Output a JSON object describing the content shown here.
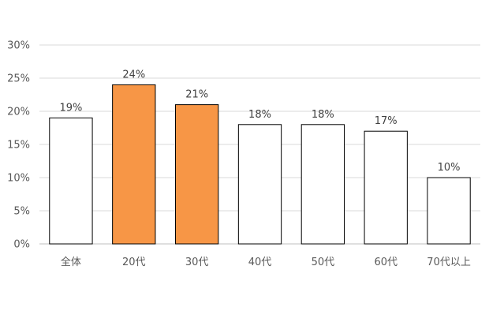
{
  "chart_data": {
    "type": "bar",
    "categories": [
      "全体",
      "20代",
      "30代",
      "40代",
      "50代",
      "60代",
      "70代以上"
    ],
    "values": [
      19,
      24,
      21,
      18,
      18,
      17,
      10
    ],
    "data_labels": [
      "19%",
      "24%",
      "21%",
      "18%",
      "18%",
      "17%",
      "10%"
    ],
    "highlighted": [
      false,
      true,
      true,
      false,
      false,
      false,
      false
    ],
    "ylim": [
      0,
      30
    ],
    "yticks": [
      0,
      5,
      10,
      15,
      20,
      25,
      30
    ],
    "ytick_labels": [
      "0%",
      "5%",
      "10%",
      "15%",
      "20%",
      "25%",
      "30%"
    ],
    "grid": true,
    "legend": false,
    "colors": {
      "highlight_fill": "#f79646",
      "default_fill": "#ffffff",
      "bar_stroke": "#000000"
    }
  }
}
